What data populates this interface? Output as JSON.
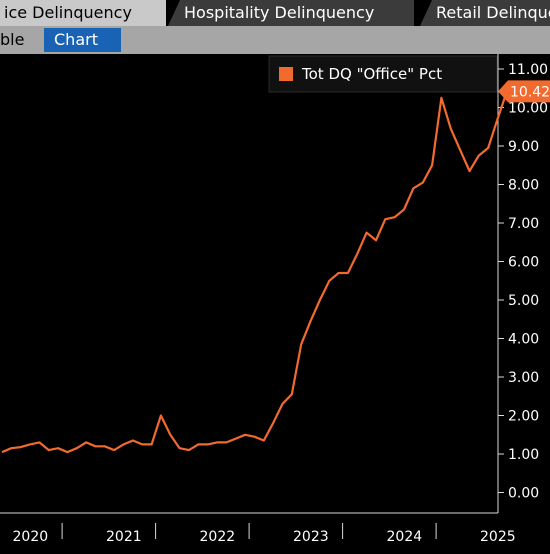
{
  "tabs": [
    {
      "label": "ice Delinquency",
      "active": true
    },
    {
      "label": "Hospitality Delinquency",
      "active": false
    },
    {
      "label": "Retail Delinquency",
      "active": false
    }
  ],
  "subtabs": [
    {
      "label": "ble",
      "selected": false
    },
    {
      "label": "Chart",
      "selected": true
    }
  ],
  "colors": {
    "series": "#f26a2e",
    "background": "#000000",
    "selected_tab": "#1a62b3"
  },
  "chart_data": {
    "type": "line",
    "series": [
      {
        "name": "Tot DQ \"Office\" Pct",
        "last_value_label": "10.42",
        "x": [
          2019.9,
          2020.0,
          2020.1,
          2020.2,
          2020.3,
          2020.4,
          2020.5,
          2020.6,
          2020.7,
          2020.8,
          2020.9,
          2021.0,
          2021.1,
          2021.2,
          2021.3,
          2021.4,
          2021.5,
          2021.6,
          2021.7,
          2021.8,
          2021.9,
          2022.0,
          2022.1,
          2022.2,
          2022.3,
          2022.4,
          2022.5,
          2022.6,
          2022.7,
          2022.8,
          2022.9,
          2023.0,
          2023.1,
          2023.2,
          2023.3,
          2023.4,
          2023.5,
          2023.6,
          2023.7,
          2023.8,
          2023.9,
          2024.0,
          2024.1,
          2024.2,
          2024.3,
          2024.4,
          2024.5,
          2024.6,
          2024.7,
          2024.8,
          2024.9,
          2025.0,
          2025.1,
          2025.2,
          2025.3
        ],
        "y": [
          1.05,
          1.15,
          1.18,
          1.25,
          1.3,
          1.1,
          1.15,
          1.05,
          1.15,
          1.3,
          1.2,
          1.2,
          1.1,
          1.25,
          1.35,
          1.25,
          1.25,
          2.0,
          1.5,
          1.15,
          1.1,
          1.25,
          1.25,
          1.3,
          1.3,
          1.4,
          1.5,
          1.45,
          1.35,
          1.8,
          2.3,
          2.55,
          3.85,
          4.45,
          5.0,
          5.5,
          5.7,
          5.7,
          6.2,
          6.75,
          6.55,
          7.1,
          7.15,
          7.35,
          7.9,
          8.05,
          8.5,
          10.25,
          9.45,
          8.9,
          8.35,
          8.75,
          8.95,
          9.7,
          10.42
        ]
      }
    ],
    "x_ticks": [
      "2020",
      "2021",
      "2022",
      "2023",
      "2024",
      "2025"
    ],
    "y_ticks": [
      "0.00",
      "1.00",
      "2.00",
      "3.00",
      "4.00",
      "5.00",
      "6.00",
      "7.00",
      "8.00",
      "9.00",
      "10.00",
      "11.00"
    ],
    "ylim": [
      0,
      11
    ],
    "y_axis_side": "right",
    "legend_position": "top-right",
    "grid": false
  }
}
